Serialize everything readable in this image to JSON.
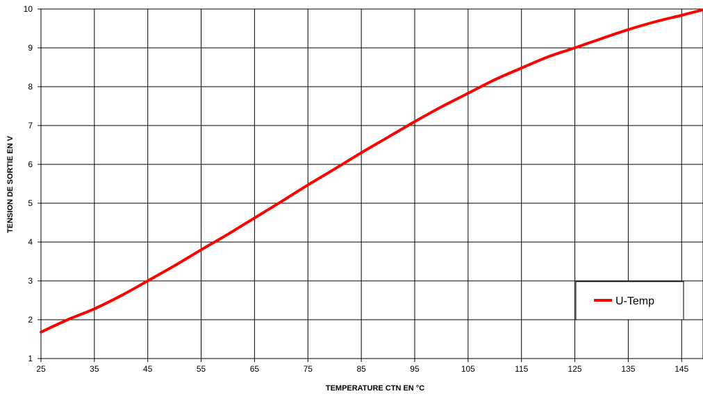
{
  "chart_data": {
    "type": "line",
    "title": "",
    "xlabel": "TEMPERATURE CTN EN °C",
    "ylabel": "TENSION DE SORTIE EN V",
    "xlim": [
      25,
      149
    ],
    "ylim": [
      1,
      10
    ],
    "x_ticks": [
      "25",
      "35",
      "45",
      "55",
      "65",
      "75",
      "85",
      "95",
      "105",
      "115",
      "125",
      "135",
      "145"
    ],
    "y_ticks": [
      "1",
      "2",
      "3",
      "4",
      "5",
      "6",
      "7",
      "8",
      "9",
      "10"
    ],
    "grid": true,
    "legend": {
      "position": "bottom-right",
      "entries": [
        "U-Temp"
      ]
    },
    "series": [
      {
        "name": "U-Temp",
        "color": "#ff0000",
        "x": [
          25,
          30,
          35,
          40,
          45,
          50,
          55,
          60,
          65,
          70,
          75,
          80,
          85,
          90,
          95,
          100,
          105,
          110,
          115,
          120,
          125,
          130,
          135,
          140,
          145,
          149
        ],
        "y": [
          1.68,
          2.0,
          2.28,
          2.62,
          3.0,
          3.39,
          3.8,
          4.2,
          4.62,
          5.04,
          5.47,
          5.88,
          6.3,
          6.7,
          7.1,
          7.48,
          7.83,
          8.18,
          8.48,
          8.77,
          9.0,
          9.24,
          9.47,
          9.67,
          9.84,
          9.98
        ]
      }
    ]
  }
}
